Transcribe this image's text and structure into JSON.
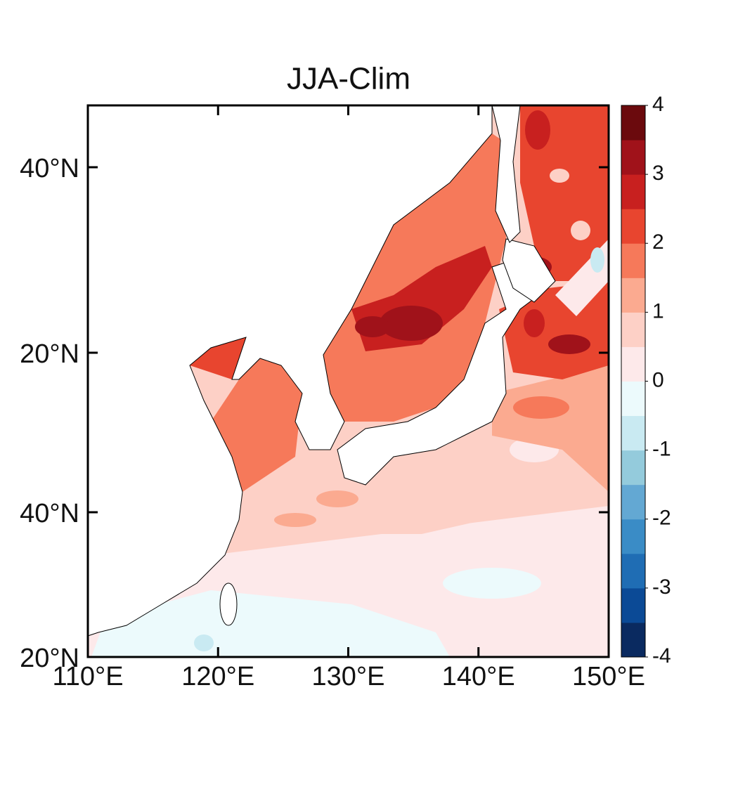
{
  "map": {
    "title": "JJA-Clim",
    "xlim": [
      110,
      150
    ],
    "xticks": [
      {
        "value": 110,
        "label": "110°E"
      },
      {
        "value": 120,
        "label": "120°E"
      },
      {
        "value": 130,
        "label": "130°E"
      },
      {
        "value": 140,
        "label": "140°E"
      },
      {
        "value": 150,
        "label": "150°E"
      }
    ],
    "ylabels": [
      "40°N",
      "20°N",
      "40°N",
      "20°N"
    ],
    "colorbar": {
      "lim": [
        -4,
        4
      ],
      "ticks": [
        4,
        3,
        2,
        1,
        0,
        -1,
        -2,
        -3,
        -4
      ],
      "colors": [
        "#0a2a60",
        "#0b4a96",
        "#1f6db4",
        "#3a8cc6",
        "#63a8d3",
        "#94cbdc",
        "#c9eaf2",
        "#ecfafc",
        "#fde9ea",
        "#fdd0c6",
        "#fbaa90",
        "#f6795a",
        "#e8452f",
        "#c8201f",
        "#a0121a",
        "#6b0a0d"
      ]
    }
  }
}
